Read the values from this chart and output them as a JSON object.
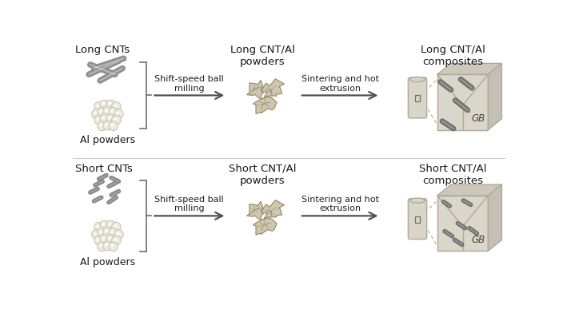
{
  "bg_color": "#ffffff",
  "fig_width": 7.04,
  "fig_height": 3.92,
  "dpi": 100,
  "lc": "#d9d5c8",
  "mc": "#b0a898",
  "dc": "#707070",
  "cnt_color": "#909090",
  "short_cnt_color": "#888888",
  "powder_face": "#cfc7b0",
  "powder_edge": "#999070",
  "al_face": "#edeae0",
  "al_edge": "#c8c0a8",
  "titles": {
    "long_cnt": "Long CNTs",
    "long_powder": "Long CNT/Al\npowders",
    "long_composite": "Long CNT/Al\ncomposites",
    "short_cnt": "Short CNTs",
    "short_powder": "Short CNT/Al\npowders",
    "short_composite": "Short CNT/Al\ncomposites",
    "al_powders": "Al powders",
    "arrow1": "Shift-speed ball\nmilling",
    "arrow2": "Sintering and hot\nextrusion",
    "gb": "GB"
  }
}
